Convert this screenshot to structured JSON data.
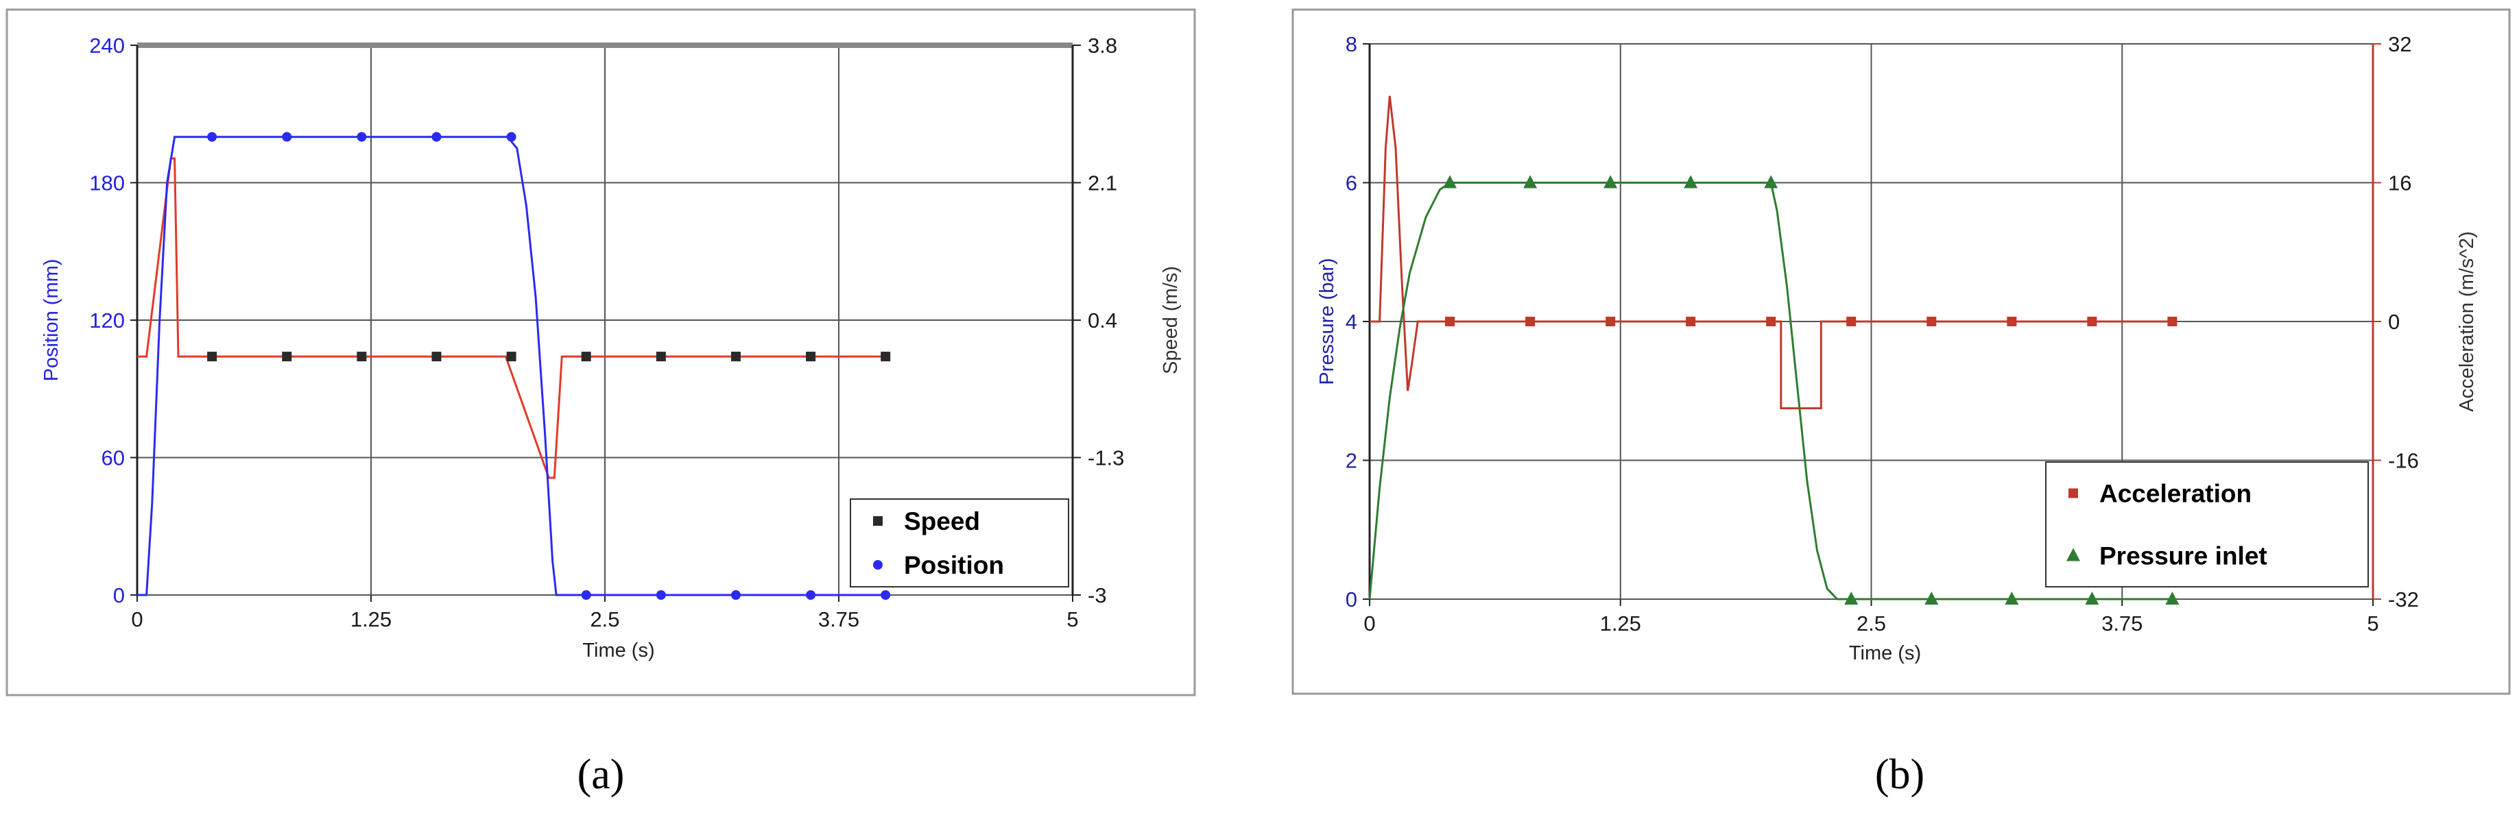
{
  "figure": {
    "captions": [
      "(a)",
      "(b)"
    ]
  },
  "chart_data": [
    {
      "type": "line",
      "panel": "a",
      "xlabel": "Time  (s)",
      "ylabel": "Position (mm)",
      "y2label": "Speed (m/s)",
      "xlim": [
        0,
        5
      ],
      "ylim": [
        0,
        240
      ],
      "y2lim": [
        -3,
        3.8
      ],
      "x_ticks": [
        "0",
        "1.25",
        "2.5",
        "3.75",
        "5"
      ],
      "y_ticks": [
        "0",
        "60",
        "120",
        "180",
        "240"
      ],
      "y2_ticks": [
        "-3",
        "-1.3",
        "0.4",
        "2.1",
        "3.8"
      ],
      "grid": true,
      "legend_position": "bottom-right",
      "colors": {
        "left_axis": "#2222dd",
        "right_axis": "#222222",
        "top_bar": "#888888"
      },
      "series": [
        {
          "name": "Speed",
          "axis": "right",
          "color": "#e23a2a",
          "marker": "square",
          "marker_color": "#2a2a2a",
          "x": [
            0,
            0.05,
            0.18,
            0.2,
            0.22,
            1.0,
            1.97,
            2.2,
            2.23,
            2.27,
            2.3,
            4.0
          ],
          "y": [
            -0.05,
            -0.05,
            2.4,
            2.4,
            -0.05,
            -0.05,
            -0.05,
            -1.55,
            -1.55,
            -0.05,
            -0.05,
            -0.05
          ],
          "marker_x": [
            0.4,
            0.8,
            1.2,
            1.6,
            2.0,
            2.4,
            2.8,
            3.2,
            3.6,
            4.0
          ],
          "marker_y": [
            -0.05,
            -0.05,
            -0.05,
            -0.05,
            -0.05,
            -0.05,
            -0.05,
            -0.05,
            -0.05,
            -0.05
          ]
        },
        {
          "name": "Position",
          "axis": "left",
          "color": "#2b2bf0",
          "marker": "circle",
          "marker_color": "#2b2bf0",
          "x": [
            0,
            0.05,
            0.08,
            0.12,
            0.16,
            0.2,
            1.0,
            1.98,
            2.03,
            2.08,
            2.13,
            2.18,
            2.22,
            2.24,
            2.3,
            4.0
          ],
          "y": [
            0,
            0,
            40,
            120,
            180,
            200,
            200,
            200,
            195,
            170,
            130,
            70,
            15,
            0,
            0,
            0
          ],
          "marker_x": [
            0.4,
            0.8,
            1.2,
            1.6,
            2.0,
            2.4,
            2.8,
            3.2,
            3.6,
            4.0
          ],
          "marker_y": [
            200,
            200,
            200,
            200,
            200,
            0,
            0,
            0,
            0,
            0
          ]
        }
      ]
    },
    {
      "type": "line",
      "panel": "b",
      "xlabel": "Time  (s)",
      "ylabel": "Pressure  (bar)",
      "y2label": "Acceleration  (m/s^2)",
      "xlim": [
        0,
        5
      ],
      "ylim": [
        0,
        8
      ],
      "y2lim": [
        -32,
        32
      ],
      "x_ticks": [
        "0",
        "1.25",
        "2.5",
        "3.75",
        "5"
      ],
      "y_ticks": [
        "0",
        "2",
        "4",
        "6",
        "8"
      ],
      "y2_ticks": [
        "-32",
        "-16",
        "0",
        "16",
        "32"
      ],
      "grid": true,
      "legend_position": "bottom-right",
      "colors": {
        "left_axis": "#2222aa",
        "right_axis": "#c0392b"
      },
      "series": [
        {
          "name": "Acceleration",
          "axis": "right",
          "color": "#c0392b",
          "marker": "square",
          "marker_color": "#c0392b",
          "x": [
            0,
            0.05,
            0.08,
            0.1,
            0.13,
            0.16,
            0.19,
            0.21,
            0.24,
            1.0,
            2.0,
            2.05,
            2.05,
            2.25,
            2.25,
            2.3,
            4.0
          ],
          "y": [
            0,
            0,
            20,
            26,
            20,
            5,
            -8,
            -5,
            0,
            0,
            0,
            0,
            -10,
            -10,
            0,
            0,
            0
          ],
          "marker_x": [
            0.4,
            0.8,
            1.2,
            1.6,
            2.0,
            2.4,
            2.8,
            3.2,
            3.6,
            4.0
          ],
          "marker_y": [
            0,
            0,
            0,
            0,
            0,
            0,
            0,
            0,
            0,
            0
          ]
        },
        {
          "name": "Pressure inlet",
          "axis": "left",
          "color": "#2e7d32",
          "marker": "triangle",
          "marker_color": "#2e7d32",
          "x": [
            0,
            0.05,
            0.1,
            0.15,
            0.2,
            0.28,
            0.35,
            0.4,
            1.0,
            2.0,
            2.03,
            2.08,
            2.13,
            2.18,
            2.23,
            2.28,
            2.33,
            4.0
          ],
          "y": [
            0,
            1.6,
            2.9,
            3.9,
            4.7,
            5.5,
            5.9,
            6.0,
            6.0,
            6.0,
            5.6,
            4.5,
            3.1,
            1.7,
            0.7,
            0.15,
            0,
            0
          ],
          "marker_x": [
            0.4,
            0.8,
            1.2,
            1.6,
            2.0,
            2.4,
            2.8,
            3.2,
            3.6,
            4.0
          ],
          "marker_y": [
            6,
            6,
            6,
            6,
            6,
            0,
            0,
            0,
            0,
            0
          ]
        }
      ]
    }
  ]
}
